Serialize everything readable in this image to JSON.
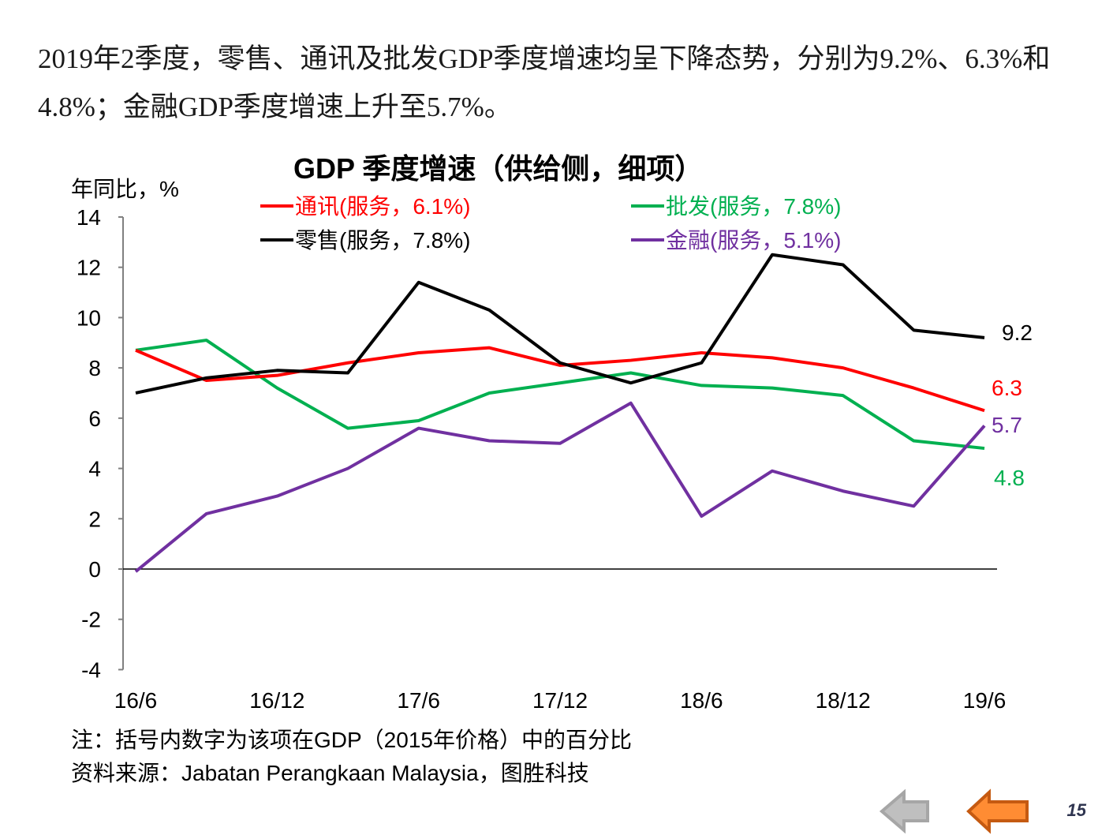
{
  "headline": "2019年2季度，零售、通讯及批发GDP季度增速均呈下降态势，分别为9.2%、6.3%和4.8%；金融GDP季度增速上升至5.7%。",
  "chart_data": {
    "type": "line",
    "title": "GDP 季度增速（供给侧，细项）",
    "ylabel": "年同比，%",
    "xlabel": "",
    "ylim": [
      -4,
      14
    ],
    "yticks": [
      -4,
      -2,
      0,
      2,
      4,
      6,
      8,
      10,
      12,
      14
    ],
    "x": [
      "16/6",
      "16/9",
      "16/12",
      "17/3",
      "17/6",
      "17/9",
      "17/12",
      "18/3",
      "18/6",
      "18/9",
      "18/12",
      "19/3",
      "19/6"
    ],
    "xtick_labels": [
      "16/6",
      "16/12",
      "17/6",
      "17/12",
      "18/6",
      "18/12",
      "19/6"
    ],
    "legend_placement": "top",
    "series": [
      {
        "name": "通讯(服务，6.1%)",
        "color": "#ff0000",
        "values": [
          8.7,
          7.5,
          7.7,
          8.2,
          8.6,
          8.8,
          8.1,
          8.3,
          8.6,
          8.4,
          8.0,
          7.2,
          6.3
        ],
        "end_label": "6.3"
      },
      {
        "name": "零售(服务，7.8%)",
        "color": "#000000",
        "values": [
          7.0,
          7.6,
          7.9,
          7.8,
          11.4,
          10.3,
          8.2,
          7.4,
          8.2,
          12.5,
          12.1,
          9.5,
          9.2
        ],
        "end_label": "9.2"
      },
      {
        "name": "批发(服务，7.8%)",
        "color": "#00b050",
        "values": [
          8.7,
          9.1,
          7.2,
          5.6,
          5.9,
          7.0,
          7.4,
          7.8,
          7.3,
          7.2,
          6.9,
          5.1,
          4.8
        ],
        "end_label": "4.8"
      },
      {
        "name": "金融(服务，5.1%)",
        "color": "#7030a0",
        "values": [
          -0.1,
          2.2,
          2.9,
          4.0,
          5.6,
          5.1,
          5.0,
          6.6,
          2.1,
          3.9,
          3.1,
          2.5,
          5.7
        ],
        "end_label": "5.7"
      }
    ]
  },
  "notes": {
    "note1": "注：括号内数字为该项在GDP（2015年价格）中的百分比",
    "source": "资料来源：Jabatan Perangkaan Malaysia，图胜科技"
  },
  "nav": {
    "page_number": "15",
    "back_color": "#bfbfbf",
    "prev_color": "#ff8c33"
  }
}
